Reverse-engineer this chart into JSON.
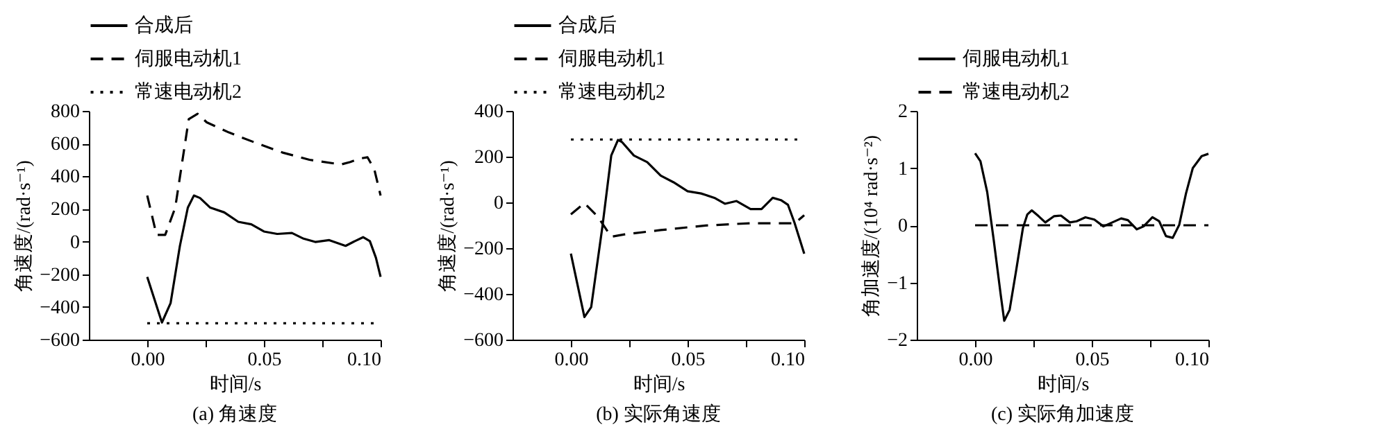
{
  "chart_data": [
    {
      "type": "line",
      "title": "(a) 角速度",
      "xlabel": "时间/s",
      "ylabel": "角速度/(rad·s⁻¹)",
      "xlim": [
        -0.025,
        0.1
      ],
      "xticks": [
        {
          "value": 0,
          "label": "0.00"
        },
        {
          "value": 0.025,
          "label": null
        },
        {
          "value": 0.05,
          "label": "0.05"
        },
        {
          "value": 0.075,
          "label": null
        },
        {
          "value": 0.1,
          "label": "0.10"
        }
      ],
      "ylim": [
        -600,
        800
      ],
      "yticks": [
        -600,
        -400,
        -200,
        0,
        200,
        400,
        600,
        800
      ],
      "grid": false,
      "legend": "top",
      "marker": "none",
      "series": [
        {
          "name": "合成后",
          "color": "#000000",
          "line_style": "solid",
          "x": [
            0,
            0.0063,
            0.01,
            0.014,
            0.0174,
            0.02,
            0.0226,
            0.027,
            0.033,
            0.039,
            0.0446,
            0.05,
            0.0557,
            0.062,
            0.067,
            0.072,
            0.078,
            0.085,
            0.089,
            0.0925,
            0.0954,
            0.098,
            0.1
          ],
          "values": [
            -216,
            -495,
            -377,
            -26,
            208,
            282,
            267,
            208,
            179,
            121,
            106,
            62,
            47,
            53,
            18,
            -2,
            9,
            -26,
            3,
            27,
            3,
            -99,
            -216
          ]
        },
        {
          "name": "伺服电动机1",
          "color": "#000000",
          "line_style": "dashed",
          "x": [
            0,
            0.004,
            0.0077,
            0.012,
            0.0178,
            0.0216,
            0.0255,
            0.035,
            0.0466,
            0.058,
            0.0695,
            0.083,
            0.087,
            0.0906,
            0.0944,
            0.0973,
            0.1
          ],
          "values": [
            282,
            41,
            41,
            208,
            750,
            782,
            730,
            668,
            604,
            545,
            501,
            472,
            487,
            507,
            516,
            443,
            282
          ]
        },
        {
          "name": "常速电动机2",
          "color": "#000000",
          "line_style": "dotted",
          "x": [
            0,
            0.1
          ],
          "values": [
            -500,
            -500
          ]
        }
      ]
    },
    {
      "type": "line",
      "title": "(b) 实际角速度",
      "xlabel": "时间/s",
      "ylabel": "角速度/(rad·s⁻¹)",
      "xlim": [
        -0.025,
        0.1
      ],
      "xticks": [
        {
          "value": 0,
          "label": "0.00"
        },
        {
          "value": 0.025,
          "label": null
        },
        {
          "value": 0.05,
          "label": "0.05"
        },
        {
          "value": 0.075,
          "label": null
        },
        {
          "value": 0.1,
          "label": "0.10"
        }
      ],
      "ylim": [
        -600,
        400
      ],
      "yticks": [
        -600,
        -400,
        -200,
        0,
        200,
        400
      ],
      "grid": false,
      "legend": "top",
      "marker": "none",
      "series": [
        {
          "name": "合成后",
          "color": "#000000",
          "line_style": "solid",
          "x": [
            0,
            0.0058,
            0.0087,
            0.0135,
            0.0173,
            0.0202,
            0.022,
            0.027,
            0.0327,
            0.0385,
            0.044,
            0.05,
            0.0558,
            0.0615,
            0.066,
            0.071,
            0.077,
            0.0817,
            0.0865,
            0.09,
            0.093,
            0.0958,
            0.1
          ],
          "values": [
            -224,
            -501,
            -458,
            -107,
            205,
            273,
            263,
            205,
            176,
            117,
            88,
            49,
            39,
            20,
            -6,
            6,
            -29,
            -29,
            20,
            10,
            -10,
            -88,
            -224
          ]
        },
        {
          "name": "伺服电动机1",
          "color": "#000000",
          "line_style": "dashed",
          "x": [
            0,
            0.0058,
            0.0115,
            0.0173,
            0.023,
            0.0385,
            0.0577,
            0.077,
            0.096,
            0.1
          ],
          "values": [
            -52,
            -3,
            -62,
            -150,
            -140,
            -121,
            -101,
            -91,
            -91,
            -56
          ]
        },
        {
          "name": "常速电动机2",
          "color": "#000000",
          "line_style": "dotted",
          "x": [
            0,
            0.1
          ],
          "values": [
            275,
            275
          ]
        }
      ]
    },
    {
      "type": "line",
      "title": "(c) 实际角加速度",
      "xlabel": "时间/s",
      "ylabel": "角加速度/(10⁴ rad·s⁻²)",
      "xlim": [
        -0.025,
        0.1
      ],
      "xticks": [
        {
          "value": 0,
          "label": "0.00"
        },
        {
          "value": 0.025,
          "label": null
        },
        {
          "value": 0.05,
          "label": "0.05"
        },
        {
          "value": 0.075,
          "label": null
        },
        {
          "value": 0.1,
          "label": "0.10"
        }
      ],
      "ylim": [
        -2,
        2
      ],
      "yticks": [
        -2,
        -1,
        0,
        1,
        2
      ],
      "grid": false,
      "legend": "top",
      "marker": "none",
      "series": [
        {
          "name": "伺服电动机1",
          "color": "#000000",
          "line_style": "solid",
          "x": [
            0,
            0.0023,
            0.0052,
            0.008,
            0.011,
            0.0125,
            0.0148,
            0.0176,
            0.0205,
            0.0224,
            0.0243,
            0.0272,
            0.0301,
            0.0339,
            0.0368,
            0.0406,
            0.0435,
            0.0473,
            0.0511,
            0.055,
            0.0588,
            0.0626,
            0.0655,
            0.0693,
            0.0722,
            0.076,
            0.0789,
            0.0818,
            0.0847,
            0.0875,
            0.0904,
            0.0933,
            0.0971,
            0.1
          ],
          "values": [
            1.26,
            1.12,
            0.58,
            -0.26,
            -1.22,
            -1.67,
            -1.48,
            -0.79,
            -0.05,
            0.19,
            0.26,
            0.16,
            0.05,
            0.16,
            0.17,
            0.05,
            0.07,
            0.14,
            0.1,
            -0.02,
            0.05,
            0.12,
            0.09,
            -0.07,
            -0.02,
            0.14,
            0.07,
            -0.19,
            -0.22,
            0.01,
            0.56,
            1.0,
            1.21,
            1.25
          ]
        },
        {
          "name": "常速电动机2",
          "color": "#000000",
          "line_style": "dashed",
          "x": [
            0,
            0.1
          ],
          "values": [
            0,
            0
          ]
        }
      ]
    }
  ]
}
